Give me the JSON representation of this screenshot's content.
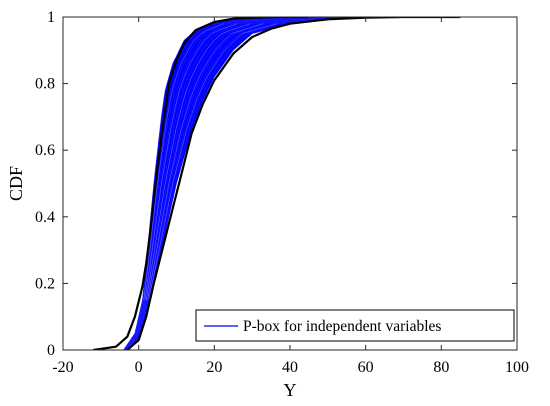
{
  "chart_data": {
    "type": "line",
    "title": "",
    "xlabel": "Y",
    "ylabel": "CDF",
    "xlim": [
      -20,
      100
    ],
    "ylim": [
      0,
      1
    ],
    "xticks": [
      -20,
      0,
      20,
      40,
      60,
      80,
      100
    ],
    "yticks": [
      0,
      0.2,
      0.4,
      0.6,
      0.8,
      1
    ],
    "xtick_labels": [
      "-20",
      "0",
      "20",
      "40",
      "60",
      "80",
      "100"
    ],
    "ytick_labels": [
      "0",
      "0.2",
      "0.4",
      "0.6",
      "0.8",
      "1"
    ],
    "grid": false,
    "legend": {
      "position": "bottom-right",
      "entries": [
        "P-box for independent variables"
      ]
    },
    "colors": {
      "family": "#0000ff",
      "bounds": "#000000"
    },
    "series": [
      {
        "name": "P-box for independent variables",
        "color": "#0000ff",
        "role": "family of CDF curves (filled band)",
        "band_lower_x": [
          -3,
          0,
          2,
          4,
          6,
          8,
          10,
          12,
          14,
          17,
          20,
          25,
          30,
          40,
          50,
          60
        ],
        "band_lower_y": [
          0,
          0.03,
          0.1,
          0.2,
          0.3,
          0.4,
          0.5,
          0.58,
          0.66,
          0.75,
          0.82,
          0.9,
          0.95,
          0.98,
          0.995,
          1.0
        ],
        "band_upper_x": [
          -4,
          -1,
          1,
          2,
          3,
          4,
          5,
          6,
          7,
          9,
          12,
          15,
          20,
          30,
          37
        ],
        "band_upper_y": [
          0,
          0.05,
          0.15,
          0.26,
          0.38,
          0.5,
          0.6,
          0.7,
          0.78,
          0.86,
          0.93,
          0.96,
          0.985,
          0.998,
          1.0
        ]
      },
      {
        "color": "#000000",
        "role": "upper bound of p-box",
        "x": [
          -12,
          -6,
          -3,
          -1,
          1,
          2,
          3,
          4,
          5,
          6,
          7,
          8,
          10,
          12,
          15,
          20,
          25,
          30,
          37,
          45
        ],
        "y": [
          0,
          0.01,
          0.04,
          0.1,
          0.19,
          0.26,
          0.35,
          0.45,
          0.55,
          0.64,
          0.72,
          0.8,
          0.87,
          0.92,
          0.96,
          0.985,
          0.995,
          0.998,
          1.0,
          1.0
        ]
      },
      {
        "color": "#000000",
        "role": "lower bound of p-box",
        "x": [
          -3,
          -2,
          0,
          2,
          4,
          6,
          8,
          10,
          12,
          14,
          17,
          20,
          25,
          30,
          35,
          40,
          50,
          60,
          70,
          85
        ],
        "y": [
          0,
          0.01,
          0.03,
          0.1,
          0.2,
          0.29,
          0.38,
          0.47,
          0.56,
          0.65,
          0.74,
          0.81,
          0.89,
          0.94,
          0.965,
          0.98,
          0.993,
          0.998,
          1.0,
          1.0
        ]
      }
    ]
  }
}
